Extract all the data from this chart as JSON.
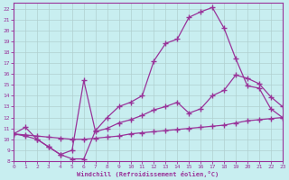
{
  "xlabel": "Windchill (Refroidissement éolien,°C)",
  "bg_color": "#c8eef0",
  "line_color": "#993399",
  "grid_color": "#b0d0d0",
  "xlim": [
    0,
    23
  ],
  "ylim": [
    8,
    22.5
  ],
  "xticks": [
    0,
    1,
    2,
    3,
    4,
    5,
    6,
    7,
    8,
    9,
    10,
    11,
    12,
    13,
    14,
    15,
    16,
    17,
    18,
    19,
    20,
    21,
    22,
    23
  ],
  "yticks": [
    8,
    9,
    10,
    11,
    12,
    13,
    14,
    15,
    16,
    17,
    18,
    19,
    20,
    21,
    22
  ],
  "line1_x": [
    0,
    1,
    2,
    3,
    4,
    5,
    6,
    7,
    8,
    9,
    10,
    11,
    12,
    13,
    14,
    15,
    16,
    17,
    18,
    19,
    20,
    21,
    22,
    23
  ],
  "line1_y": [
    10.5,
    11.1,
    10.0,
    9.3,
    8.6,
    8.2,
    8.2,
    10.8,
    12.0,
    13.0,
    13.4,
    14.0,
    17.2,
    18.8,
    19.2,
    21.2,
    21.7,
    22.1,
    20.2,
    17.4,
    14.9,
    14.7,
    12.8,
    12.0
  ],
  "line2_x": [
    0,
    1,
    2,
    3,
    4,
    5,
    6,
    7,
    8,
    9,
    10,
    11,
    12,
    13,
    14,
    15,
    16,
    17,
    18,
    19,
    20,
    21,
    22,
    23
  ],
  "line2_y": [
    10.5,
    10.3,
    10.0,
    9.3,
    8.6,
    9.0,
    15.4,
    10.7,
    11.0,
    11.5,
    11.8,
    12.2,
    12.7,
    13.0,
    13.4,
    12.4,
    12.8,
    14.0,
    14.5,
    15.9,
    15.6,
    15.1,
    13.9,
    13.0
  ],
  "line3_x": [
    0,
    1,
    2,
    3,
    4,
    5,
    6,
    7,
    8,
    9,
    10,
    11,
    12,
    13,
    14,
    15,
    16,
    17,
    18,
    19,
    20,
    21,
    22,
    23
  ],
  "line3_y": [
    10.5,
    10.4,
    10.3,
    10.2,
    10.1,
    10.0,
    10.0,
    10.1,
    10.2,
    10.3,
    10.5,
    10.6,
    10.7,
    10.8,
    10.9,
    11.0,
    11.1,
    11.2,
    11.3,
    11.5,
    11.7,
    11.8,
    11.9,
    12.0
  ]
}
